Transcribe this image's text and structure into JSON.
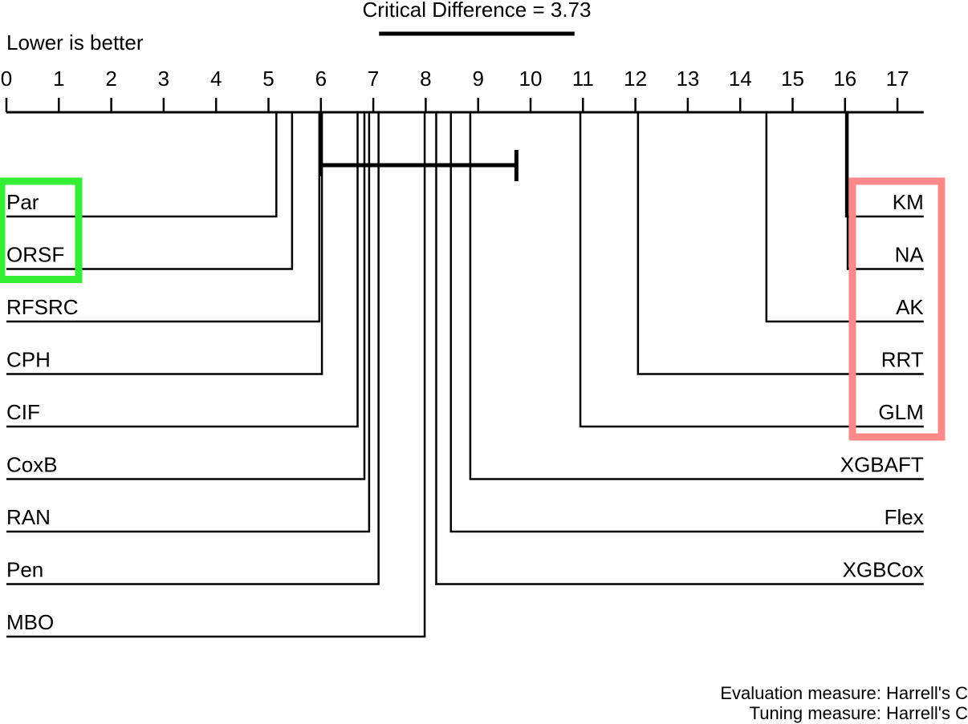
{
  "chart_data": {
    "type": "critical-difference",
    "title": "Critical Difference = 3.73",
    "critical_difference": 3.73,
    "axis_label": "Lower is better",
    "xlim": [
      0,
      17.5
    ],
    "ticks": [
      0,
      1,
      2,
      3,
      4,
      5,
      6,
      7,
      8,
      9,
      10,
      11,
      12,
      13,
      14,
      15,
      16,
      17
    ],
    "cd_bar_anchor_rank": 6.0,
    "left_learners": [
      {
        "name": "Par",
        "rank": 5.15
      },
      {
        "name": "ORSF",
        "rank": 5.45
      },
      {
        "name": "RFSRC",
        "rank": 5.97
      },
      {
        "name": "CPH",
        "rank": 6.02
      },
      {
        "name": "CIF",
        "rank": 6.7
      },
      {
        "name": "CoxB",
        "rank": 6.83
      },
      {
        "name": "RAN",
        "rank": 6.92
      },
      {
        "name": "Pen",
        "rank": 7.1
      },
      {
        "name": "MBO",
        "rank": 7.98
      }
    ],
    "right_learners": [
      {
        "name": "KM",
        "rank": 16.02
      },
      {
        "name": "NA",
        "rank": 16.05
      },
      {
        "name": "AK",
        "rank": 14.5
      },
      {
        "name": "RRT",
        "rank": 12.05
      },
      {
        "name": "GLM",
        "rank": 10.95
      },
      {
        "name": "XGBAFT",
        "rank": 8.85
      },
      {
        "name": "Flex",
        "rank": 8.48
      },
      {
        "name": "XGBCox",
        "rank": 8.2
      }
    ],
    "highlights": [
      {
        "group": "left",
        "from": 0,
        "to": 1,
        "color": "#33ee33"
      },
      {
        "group": "right",
        "from": 0,
        "to": 4,
        "color": "#ff8888"
      }
    ]
  },
  "footer": {
    "evaluation": "Evaluation measure: Harrell's C",
    "tuning": "Tuning measure: Harrell's C"
  }
}
